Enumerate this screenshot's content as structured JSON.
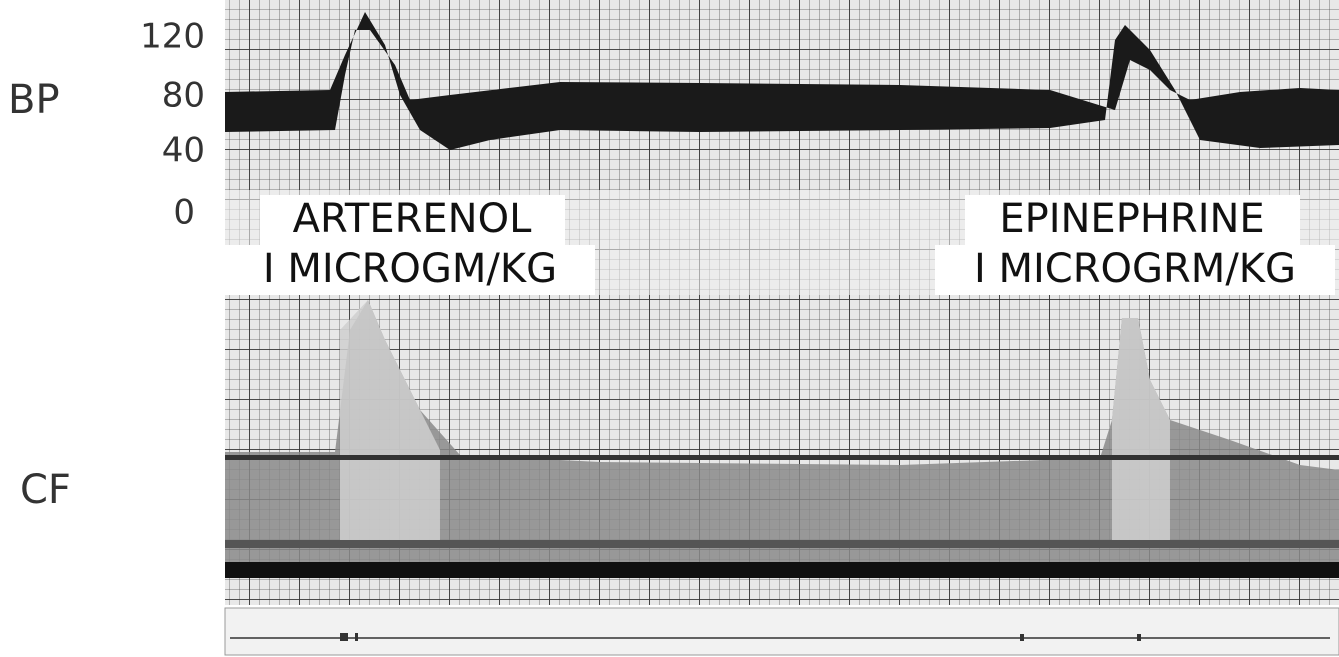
{
  "labels": {
    "bp": "BP",
    "cf": "CF"
  },
  "bp_ticks": [
    120,
    80,
    40,
    0
  ],
  "annotations": [
    {
      "drug": "ARTERENOL",
      "dose": "I MICROGM/KG"
    },
    {
      "drug": "EPINEPHRINE",
      "dose": "I MICROGRM/KG"
    }
  ]
}
